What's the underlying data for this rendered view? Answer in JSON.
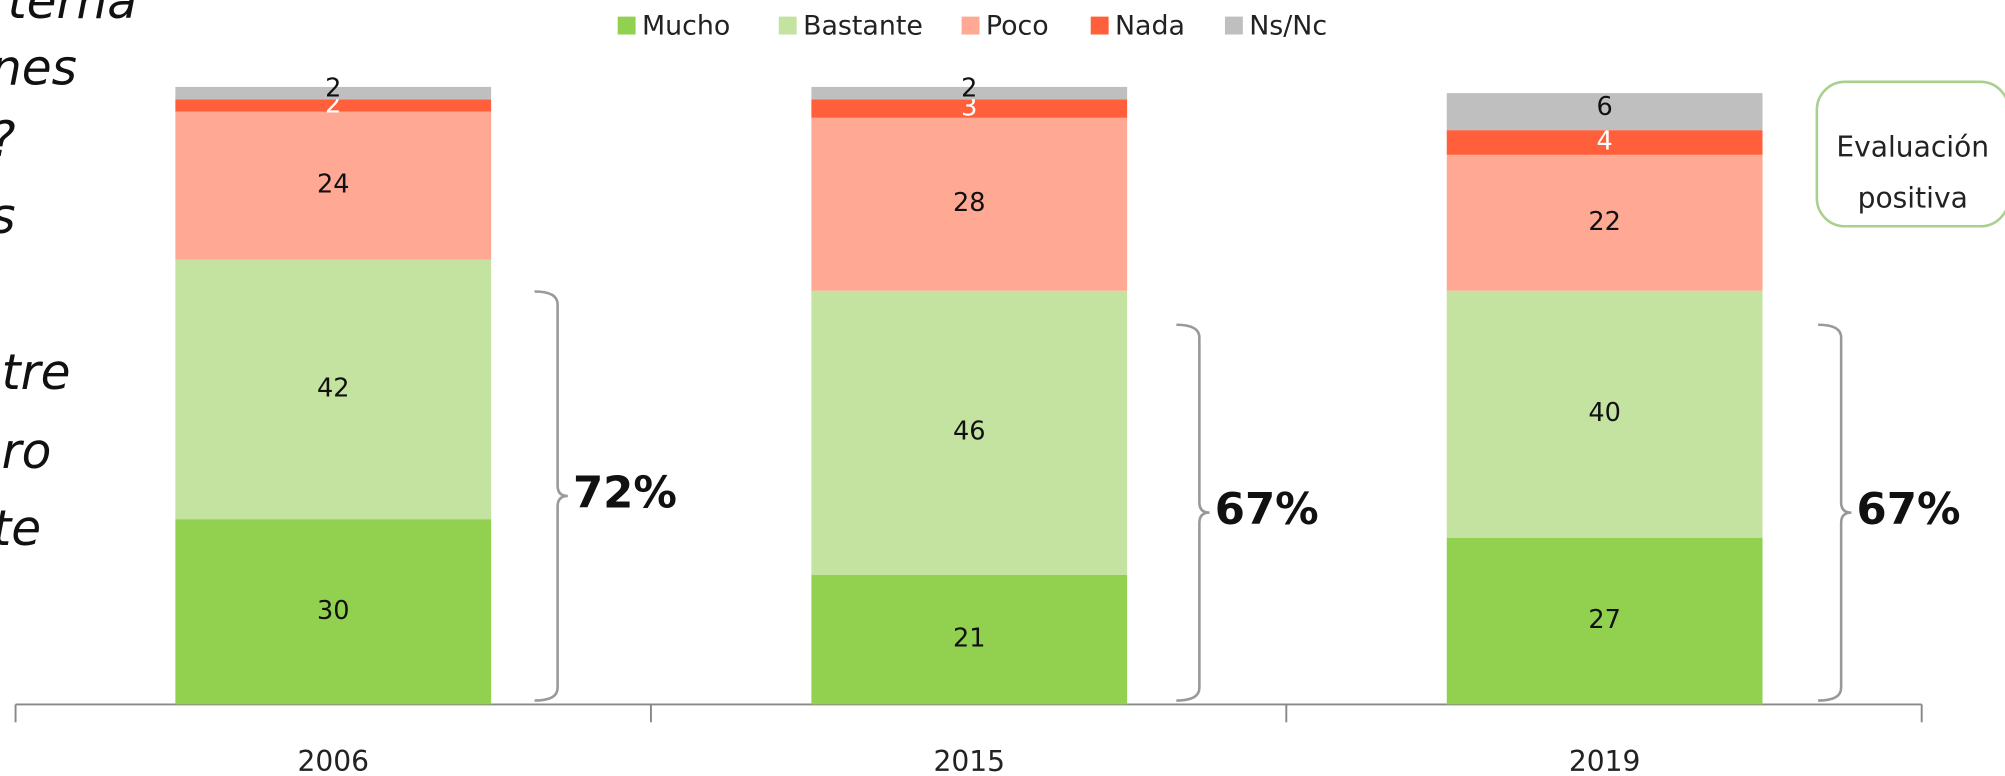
{
  "chart_data": {
    "type": "stacked_bar",
    "categories": [
      "2006",
      "2015",
      "2019"
    ],
    "series": [
      {
        "name": "Mucho",
        "color": "#92d050",
        "values": [
          30,
          21,
          27
        ]
      },
      {
        "name": "Bastante",
        "color": "#c4e3a0",
        "values": [
          42,
          46,
          40
        ]
      },
      {
        "name": "Poco",
        "color": "#ffa894",
        "values": [
          24,
          28,
          22
        ]
      },
      {
        "name": "Nada",
        "color": "#ff5f3a",
        "values": [
          2,
          3,
          4
        ]
      },
      {
        "name": "Ns/Nc",
        "color": "#bfbfbf",
        "values": [
          2,
          2,
          6
        ]
      }
    ],
    "ylim": [
      0,
      100
    ],
    "annotations": [
      "72%",
      "67%",
      "67%"
    ],
    "callout": [
      "Evaluación",
      "positiva"
    ],
    "side_text": [
      "terna",
      "nes",
      "?",
      "s",
      "tre",
      "ro",
      "te"
    ]
  }
}
